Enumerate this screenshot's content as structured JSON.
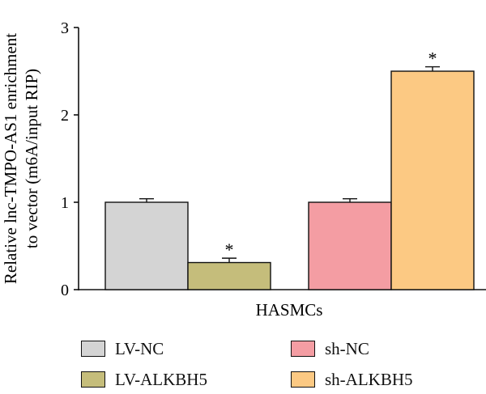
{
  "chart_data": {
    "type": "bar",
    "categories": [
      "HASMCs"
    ],
    "xlabel": "HASMCs",
    "ylabel_lines": [
      "Relative lnc-TMPO-AS1 enrichment",
      "to vector (m6A/input RIP)"
    ],
    "ylim": [
      0,
      3
    ],
    "yticks": [
      0,
      1,
      2,
      3
    ],
    "grid": false,
    "legend_placement": "bottom",
    "series": [
      {
        "name": "LV-NC",
        "values": [
          1.0
        ],
        "error": [
          0.04
        ],
        "color": "#d4d4d4",
        "marker": ""
      },
      {
        "name": "LV-ALKBH5",
        "values": [
          0.31
        ],
        "error": [
          0.05
        ],
        "color": "#c5bd7b",
        "marker": "*"
      },
      {
        "name": "sh-NC",
        "values": [
          1.0
        ],
        "error": [
          0.04
        ],
        "color": "#f49da3",
        "marker": ""
      },
      {
        "name": "sh-ALKBH5",
        "values": [
          2.5
        ],
        "error": [
          0.05
        ],
        "color": "#fcc983",
        "marker": "*"
      }
    ]
  }
}
